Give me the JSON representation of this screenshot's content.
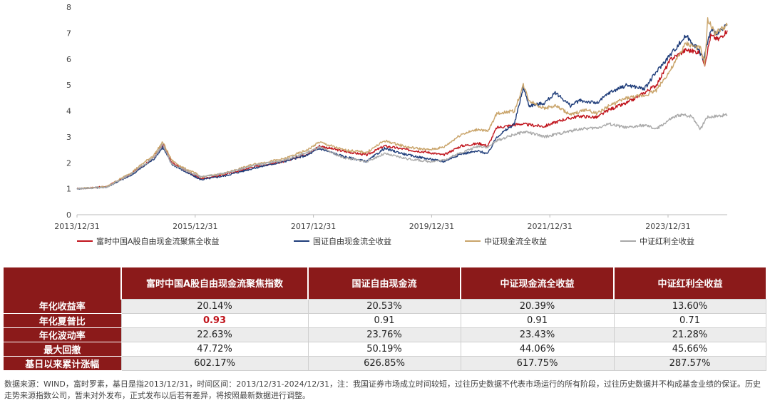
{
  "chart_data": {
    "type": "line",
    "title": "",
    "xlabel": "",
    "ylabel": "",
    "ylim": [
      0,
      8
    ],
    "y_ticks": [
      "0",
      "1",
      "2",
      "3",
      "4",
      "5",
      "6",
      "7",
      "8"
    ],
    "x_tick_labels": [
      "2013/12/31",
      "2015/12/31",
      "2017/12/31",
      "2019/12/31",
      "2021/12/31",
      "2023/12/31"
    ],
    "x_range": [
      2013.9986,
      2025.0
    ],
    "series": [
      {
        "name": "富时中国A股自由现金流聚焦全收益",
        "color": "#c0141c",
        "points": [
          [
            2014.0,
            1.0
          ],
          [
            2014.5,
            1.08
          ],
          [
            2014.9,
            1.55
          ],
          [
            2015.3,
            2.2
          ],
          [
            2015.45,
            2.72
          ],
          [
            2015.6,
            2.0
          ],
          [
            2015.8,
            1.75
          ],
          [
            2016.0,
            1.5
          ],
          [
            2016.1,
            1.38
          ],
          [
            2016.5,
            1.55
          ],
          [
            2017.0,
            1.85
          ],
          [
            2017.5,
            2.05
          ],
          [
            2017.9,
            2.35
          ],
          [
            2018.1,
            2.65
          ],
          [
            2018.5,
            2.45
          ],
          [
            2018.9,
            2.3
          ],
          [
            2019.2,
            2.65
          ],
          [
            2019.6,
            2.5
          ],
          [
            2019.95,
            2.4
          ],
          [
            2020.2,
            2.3
          ],
          [
            2020.5,
            2.65
          ],
          [
            2020.8,
            2.75
          ],
          [
            2020.95,
            2.65
          ],
          [
            2021.1,
            3.35
          ],
          [
            2021.5,
            3.5
          ],
          [
            2021.9,
            3.4
          ],
          [
            2022.2,
            3.65
          ],
          [
            2022.5,
            3.8
          ],
          [
            2022.8,
            3.75
          ],
          [
            2023.0,
            4.05
          ],
          [
            2023.3,
            4.3
          ],
          [
            2023.6,
            4.7
          ],
          [
            2023.8,
            5.0
          ],
          [
            2024.05,
            6.0
          ],
          [
            2024.3,
            6.35
          ],
          [
            2024.55,
            6.25
          ],
          [
            2024.62,
            5.8
          ],
          [
            2024.72,
            6.9
          ],
          [
            2024.85,
            6.75
          ],
          [
            2025.0,
            7.1
          ]
        ]
      },
      {
        "name": "国证自由现金流全收益",
        "color": "#1f3d7a",
        "points": [
          [
            2014.0,
            1.0
          ],
          [
            2014.5,
            1.07
          ],
          [
            2014.9,
            1.5
          ],
          [
            2015.3,
            2.15
          ],
          [
            2015.45,
            2.6
          ],
          [
            2015.6,
            1.95
          ],
          [
            2015.8,
            1.7
          ],
          [
            2016.0,
            1.45
          ],
          [
            2016.1,
            1.35
          ],
          [
            2016.5,
            1.5
          ],
          [
            2017.0,
            1.8
          ],
          [
            2017.5,
            2.05
          ],
          [
            2017.9,
            2.3
          ],
          [
            2018.1,
            2.55
          ],
          [
            2018.5,
            2.25
          ],
          [
            2018.9,
            2.05
          ],
          [
            2019.2,
            2.55
          ],
          [
            2019.6,
            2.3
          ],
          [
            2019.95,
            2.15
          ],
          [
            2020.2,
            2.05
          ],
          [
            2020.5,
            2.35
          ],
          [
            2020.8,
            2.45
          ],
          [
            2020.95,
            2.35
          ],
          [
            2021.1,
            3.0
          ],
          [
            2021.4,
            3.5
          ],
          [
            2021.55,
            4.9
          ],
          [
            2021.65,
            4.2
          ],
          [
            2021.9,
            4.3
          ],
          [
            2022.1,
            4.7
          ],
          [
            2022.35,
            4.2
          ],
          [
            2022.5,
            4.4
          ],
          [
            2022.8,
            4.3
          ],
          [
            2023.0,
            4.7
          ],
          [
            2023.3,
            5.0
          ],
          [
            2023.6,
            4.85
          ],
          [
            2023.8,
            5.5
          ],
          [
            2024.05,
            6.2
          ],
          [
            2024.3,
            6.9
          ],
          [
            2024.5,
            6.4
          ],
          [
            2024.6,
            6.0
          ],
          [
            2024.72,
            7.1
          ],
          [
            2024.85,
            7.0
          ],
          [
            2025.0,
            7.3
          ]
        ]
      },
      {
        "name": "中证现金流全收益",
        "color": "#c9a46a",
        "points": [
          [
            2014.0,
            1.0
          ],
          [
            2014.5,
            1.08
          ],
          [
            2014.9,
            1.6
          ],
          [
            2015.3,
            2.3
          ],
          [
            2015.45,
            2.8
          ],
          [
            2015.6,
            2.1
          ],
          [
            2015.8,
            1.8
          ],
          [
            2016.0,
            1.6
          ],
          [
            2016.1,
            1.45
          ],
          [
            2016.5,
            1.6
          ],
          [
            2017.0,
            1.95
          ],
          [
            2017.5,
            2.15
          ],
          [
            2017.9,
            2.5
          ],
          [
            2018.1,
            2.8
          ],
          [
            2018.5,
            2.5
          ],
          [
            2018.9,
            2.4
          ],
          [
            2019.2,
            2.85
          ],
          [
            2019.6,
            2.6
          ],
          [
            2019.95,
            2.5
          ],
          [
            2020.2,
            2.6
          ],
          [
            2020.5,
            3.1
          ],
          [
            2020.8,
            3.3
          ],
          [
            2020.95,
            3.2
          ],
          [
            2021.1,
            3.9
          ],
          [
            2021.4,
            4.0
          ],
          [
            2021.55,
            5.0
          ],
          [
            2021.65,
            4.4
          ],
          [
            2021.9,
            4.1
          ],
          [
            2022.1,
            4.2
          ],
          [
            2022.35,
            3.85
          ],
          [
            2022.6,
            4.05
          ],
          [
            2022.8,
            3.9
          ],
          [
            2023.0,
            4.2
          ],
          [
            2023.3,
            4.5
          ],
          [
            2023.6,
            4.6
          ],
          [
            2023.8,
            4.8
          ],
          [
            2024.05,
            5.6
          ],
          [
            2024.3,
            6.6
          ],
          [
            2024.55,
            6.4
          ],
          [
            2024.62,
            5.8
          ],
          [
            2024.67,
            7.5
          ],
          [
            2024.8,
            7.0
          ],
          [
            2025.0,
            7.3
          ]
        ]
      },
      {
        "name": "中证红利全收益",
        "color": "#a9a9a9",
        "points": [
          [
            2014.0,
            1.0
          ],
          [
            2014.5,
            1.06
          ],
          [
            2014.9,
            1.55
          ],
          [
            2015.3,
            2.2
          ],
          [
            2015.45,
            2.7
          ],
          [
            2015.6,
            1.95
          ],
          [
            2015.8,
            1.75
          ],
          [
            2016.0,
            1.55
          ],
          [
            2016.1,
            1.45
          ],
          [
            2016.5,
            1.6
          ],
          [
            2017.0,
            1.9
          ],
          [
            2017.5,
            2.1
          ],
          [
            2017.9,
            2.4
          ],
          [
            2018.1,
            2.6
          ],
          [
            2018.5,
            2.2
          ],
          [
            2018.9,
            2.05
          ],
          [
            2019.2,
            2.35
          ],
          [
            2019.6,
            2.15
          ],
          [
            2019.95,
            2.05
          ],
          [
            2020.2,
            2.1
          ],
          [
            2020.5,
            2.4
          ],
          [
            2020.8,
            2.65
          ],
          [
            2020.95,
            2.6
          ],
          [
            2021.1,
            2.85
          ],
          [
            2021.4,
            3.1
          ],
          [
            2021.6,
            3.2
          ],
          [
            2021.9,
            3.0
          ],
          [
            2022.2,
            3.15
          ],
          [
            2022.5,
            3.3
          ],
          [
            2022.8,
            3.35
          ],
          [
            2023.0,
            3.5
          ],
          [
            2023.3,
            3.35
          ],
          [
            2023.6,
            3.45
          ],
          [
            2023.8,
            3.3
          ],
          [
            2024.05,
            3.7
          ],
          [
            2024.2,
            3.85
          ],
          [
            2024.4,
            3.8
          ],
          [
            2024.55,
            3.3
          ],
          [
            2024.65,
            3.75
          ],
          [
            2024.8,
            3.8
          ],
          [
            2025.0,
            3.85
          ]
        ]
      }
    ]
  },
  "table": {
    "header": [
      "",
      "富时中国A股自由现金流聚焦指数",
      "国证自由现金流",
      "中证现金流全收益",
      "中证红利全收益"
    ],
    "rows": [
      {
        "label": "年化收益率",
        "values": [
          "20.14%",
          "20.53%",
          "20.39%",
          "13.60%"
        ]
      },
      {
        "label": "年化夏普比",
        "values": [
          "0.93",
          "0.91",
          "0.91",
          "0.71"
        ]
      },
      {
        "label": "年化波动率",
        "values": [
          "22.63%",
          "23.76%",
          "23.43%",
          "21.28%"
        ]
      },
      {
        "label": "最大回撤",
        "values": [
          "47.72%",
          "50.19%",
          "44.06%",
          "45.66%"
        ]
      },
      {
        "label": "基日以来累计涨幅",
        "values": [
          "602.17%",
          "626.85%",
          "617.75%",
          "287.57%"
        ]
      }
    ]
  },
  "note": "数据来源：WIND，富时罗素，基日是指2013/12/31，时间区间：2013/12/31-2024/12/31，注：我国证券市场成立时间较短，过往历史数据不代表市场运行的所有阶段，过往历史数据并不构成基金业绩的保证。历史走势来源指数公司，暂未对外发布，正式发布以后若有差异，将按照最新数据进行调整。"
}
